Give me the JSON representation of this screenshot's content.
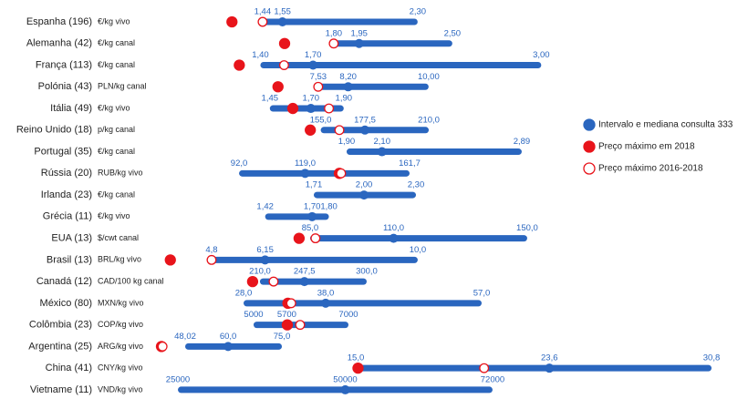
{
  "chart_data": {
    "type": "dumbbell",
    "categories": [
      "Espanha (196)",
      "Alemanha (42)",
      "França (113)",
      "Polónia (43)",
      "Itália (49)",
      "Reino Unido (18)",
      "Portugal (35)",
      "Rússia (20)",
      "Irlanda (23)",
      "Grécia (11)",
      "EUA (13)",
      "Brasil (13)",
      "Canadá (12)",
      "México (80)",
      "Colômbia (23)",
      "Argentina (25)",
      "China (41)",
      "Vietname (11)"
    ],
    "units": [
      "€/kg vivo",
      "€/kg canal",
      "€/kg canal",
      "PLN/kg canal",
      "€/kg vivo",
      "p/kg canal",
      "€/kg canal",
      "RUB/kg vivo",
      "€/kg canal",
      "€/kg vivo",
      "$/cwt canal",
      "BRL/kg vivo",
      "CAD/100 kg canal",
      "MXN/kg vivo",
      "COP/kg vivo",
      "ARG/kg vivo",
      "CNY/kg vivo",
      "VND/kg vivo"
    ],
    "xlims": [
      [
        0.97,
        3.93
      ],
      [
        0.88,
        4.03
      ],
      [
        0.93,
        3.97
      ],
      [
        4.39,
        16.33
      ],
      [
        0.89,
        4.14
      ],
      [
        82.3,
        353.9
      ],
      [
        0.946,
        3.963
      ],
      [
        67.0,
        285.1
      ],
      [
        0.925,
        4.007
      ],
      [
        0.9,
        4.08
      ],
      [
        45.4,
        205.2
      ],
      [
        3.95,
        17.41
      ],
      [
        140.8,
        590.8
      ],
      [
        20.0,
        85.0
      ],
      [
        3404,
        14654
      ],
      [
        45.98,
        194.9
      ],
      [
        7.1,
        30.8
      ],
      [
        25000,
        104700
      ]
    ],
    "series": [
      {
        "name": "Intervalo e mediana consulta 333",
        "color": "#2a66bf",
        "min": [
          1.44,
          1.8,
          1.4,
          7.53,
          1.45,
          155,
          1.9,
          92,
          1.71,
          1.42,
          85,
          4.8,
          210,
          28,
          5000,
          48.02,
          15,
          25000
        ],
        "min_labels": [
          "1,44",
          "1,80",
          "1,40",
          "7,53",
          "1,45",
          "155,0",
          "1,90",
          "92,0",
          "1,71",
          "1,42",
          "85,0",
          "4,8",
          "210,0",
          "28,0",
          "5000",
          "48,02",
          "15,0",
          "25000"
        ],
        "median": [
          1.55,
          1.95,
          1.7,
          8.2,
          1.7,
          177.5,
          2.1,
          119,
          2.0,
          1.7,
          110,
          6.15,
          247.5,
          38,
          5700,
          60,
          23.6,
          50000
        ],
        "median_labels": [
          "1,55",
          "1,95",
          "1,70",
          "8,20",
          "1,70",
          "177,5",
          "2,10",
          "119,0",
          "2,00",
          "1,70",
          "110,0",
          "6,15",
          "247,5",
          "38,0",
          "5700",
          "60,0",
          "23,6",
          "50000"
        ],
        "max": [
          2.3,
          2.5,
          3.0,
          10.0,
          1.9,
          210,
          2.89,
          161.7,
          2.3,
          1.8,
          150,
          10.0,
          300,
          57,
          7000,
          75,
          30.8,
          72000
        ],
        "max_labels": [
          "2,30",
          "2,50",
          "3,00",
          "10,00",
          "1,90",
          "210,0",
          "2,89",
          "161,7",
          "2,30",
          "1,80",
          "150,0",
          "10,0",
          "300,0",
          "57,0",
          "7000",
          "75,0",
          "30,8",
          "72000"
        ]
      },
      {
        "name": "Preço máximo em 2018",
        "color": "#e8141b",
        "values": [
          1.27,
          1.51,
          1.28,
          6.63,
          1.59,
          149.7,
          null,
          133.0,
          null,
          null,
          81.7,
          3.76,
          203.8,
          33.4,
          5711,
          41.4,
          15.1,
          null
        ]
      },
      {
        "name": "Preço máximo 2016-2018",
        "color": "#e8141b",
        "fill": "#ffffff",
        "values": [
          1.44,
          1.8,
          1.535,
          7.53,
          1.81,
          164.5,
          null,
          133.7,
          null,
          null,
          86.6,
          4.8,
          221.5,
          33.8,
          5981,
          41.7,
          20.7,
          null
        ]
      }
    ]
  }
}
